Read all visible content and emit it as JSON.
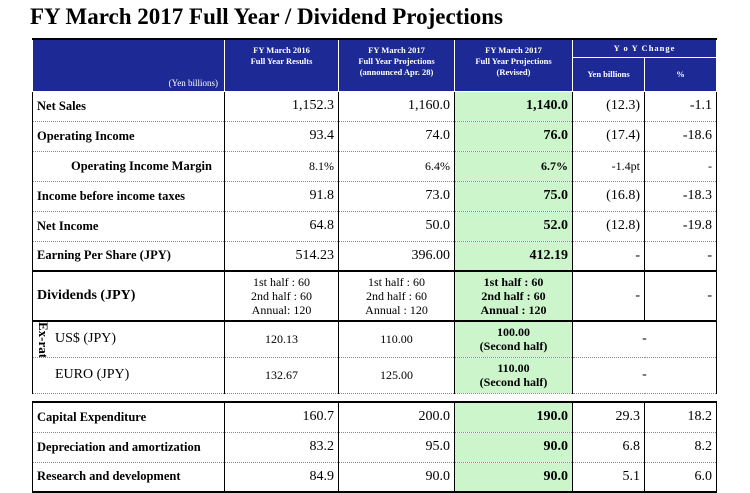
{
  "title": "FY March 2017 Full Year / Dividend Projections",
  "header": {
    "unit": "(Yen billions)",
    "col1": [
      "FY March 2016",
      "Full Year Results"
    ],
    "col2": [
      "FY March 2017",
      "Full Year Projections",
      "(announced Apr. 28)"
    ],
    "col3": [
      "FY March 2017",
      "Full Year Projections",
      "(Revised)"
    ],
    "yoy": "Y o Y Change",
    "yoy_yen": "Yen billions",
    "yoy_pct": "%"
  },
  "rows": {
    "net_sales": {
      "label": "Net Sales",
      "v1": "1,152.3",
      "v2": "1,160.0",
      "v3": "1,140.0",
      "y1": "(12.3)",
      "y2": "-1.1"
    },
    "op_income": {
      "label": "Operating Income",
      "v1": "93.4",
      "v2": "74.0",
      "v3": "76.0",
      "y1": "(17.4)",
      "y2": "-18.6"
    },
    "op_margin": {
      "label": "Operating Income Margin",
      "v1": "8.1%",
      "v2": "6.4%",
      "v3": "6.7%",
      "y1": "-1.4pt",
      "y2": "-"
    },
    "pretax": {
      "label": "Income before income taxes",
      "v1": "91.8",
      "v2": "73.0",
      "v3": "75.0",
      "y1": "(16.8)",
      "y2": "-18.3"
    },
    "net_income": {
      "label": "Net Income",
      "v1": "64.8",
      "v2": "50.0",
      "v3": "52.0",
      "y1": "(12.8)",
      "y2": "-19.8"
    },
    "eps": {
      "label": "Earning Per Share (JPY)",
      "v1": "514.23",
      "v2": "396.00",
      "v3": "412.19",
      "y1": "-",
      "y2": "-"
    }
  },
  "dividends": {
    "label": "Dividends (JPY)",
    "c1": [
      "1st half : 60",
      "2nd half : 60",
      "Annual: 120"
    ],
    "c2": [
      "1st half : 60",
      "2nd half : 60",
      "Annual : 120"
    ],
    "c3": [
      "1st half : 60",
      "2nd half : 60",
      "Annual : 120"
    ],
    "y1": "-",
    "y2": "-"
  },
  "exrate": {
    "side_label": "Ex-rate",
    "usd": {
      "label": "US$ (JPY)",
      "v1": "120.13",
      "v2": "110.00",
      "v3": [
        "100.00",
        "(Second half)"
      ],
      "yoy": "-"
    },
    "eur": {
      "label": "EURO (JPY)",
      "v1": "132.67",
      "v2": "125.00",
      "v3": [
        "110.00",
        "(Second half)"
      ],
      "yoy": "-"
    }
  },
  "other": {
    "capex": {
      "label": "Capital Expenditure",
      "v1": "160.7",
      "v2": "200.0",
      "v3": "190.0",
      "y1": "29.3",
      "y2": "18.2"
    },
    "depr": {
      "label": "Depreciation and amortization",
      "v1": "83.2",
      "v2": "95.0",
      "v3": "90.0",
      "y1": "6.8",
      "y2": "8.2"
    },
    "rnd": {
      "label": "Research and development",
      "v1": "84.9",
      "v2": "90.0",
      "v3": "90.0",
      "y1": "5.1",
      "y2": "6.0"
    }
  },
  "colors": {
    "header_bg": "#1d2a96",
    "revised_bg": "#ccf5cc"
  }
}
